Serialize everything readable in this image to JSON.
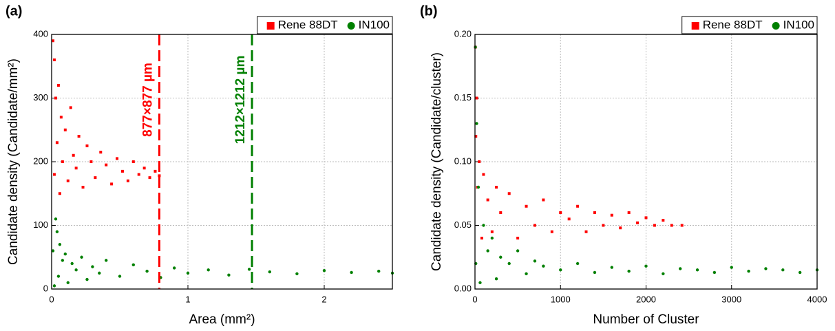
{
  "chart_data": [
    {
      "type": "scatter",
      "panel_label": "(a)",
      "x_label": "Area (mm²)",
      "y_label": "Candidate density (Candidate/mm²)",
      "xlim": [
        0,
        2.5
      ],
      "xticks": [
        0,
        1,
        2
      ],
      "ylim": [
        0,
        400
      ],
      "yticks": [
        0,
        100,
        200,
        300,
        400
      ],
      "grid": true,
      "legend": "upper right",
      "series": [
        {
          "name": "Rene 88DT",
          "color": "#ff0000",
          "marker": "square",
          "x": [
            0.01,
            0.02,
            0.02,
            0.03,
            0.04,
            0.05,
            0.06,
            0.07,
            0.08,
            0.1,
            0.12,
            0.14,
            0.16,
            0.18,
            0.2,
            0.23,
            0.26,
            0.29,
            0.32,
            0.36,
            0.4,
            0.44,
            0.48,
            0.52,
            0.56,
            0.6,
            0.64,
            0.68,
            0.72,
            0.76,
            0.79
          ],
          "values": [
            390,
            360,
            180,
            300,
            230,
            320,
            150,
            270,
            200,
            250,
            170,
            285,
            210,
            190,
            240,
            160,
            225,
            200,
            175,
            215,
            195,
            165,
            205,
            185,
            170,
            200,
            180,
            190,
            175,
            185,
            178
          ]
        },
        {
          "name": "IN100",
          "color": "#008000",
          "marker": "circle",
          "x": [
            0.01,
            0.02,
            0.03,
            0.04,
            0.05,
            0.06,
            0.08,
            0.1,
            0.12,
            0.15,
            0.18,
            0.22,
            0.26,
            0.3,
            0.35,
            0.4,
            0.5,
            0.6,
            0.7,
            0.8,
            0.9,
            1.0,
            1.15,
            1.3,
            1.45,
            1.6,
            1.8,
            2.0,
            2.2,
            2.4,
            2.5
          ],
          "values": [
            60,
            5,
            110,
            90,
            20,
            70,
            45,
            55,
            10,
            40,
            30,
            50,
            15,
            35,
            25,
            45,
            20,
            38,
            28,
            18,
            33,
            25,
            30,
            22,
            31,
            27,
            24,
            29,
            26,
            28,
            25
          ]
        }
      ],
      "annotations": [
        {
          "text": "877×877 µm",
          "x": 0.79,
          "color": "#ff0000"
        },
        {
          "text": "1212×1212 µm",
          "x": 1.47,
          "color": "#008000"
        }
      ]
    },
    {
      "type": "scatter",
      "panel_label": "(b)",
      "x_label": "Number of Cluster",
      "y_label": "Candidate density (Candidate/cluster)",
      "xlim": [
        0,
        4000
      ],
      "xticks": [
        0,
        1000,
        2000,
        3000,
        4000
      ],
      "ylim": [
        0,
        0.2
      ],
      "yticks": [
        {
          "value": 0,
          "label": "0.00"
        },
        0.05,
        {
          "value": 0.1,
          "label": "0.10"
        },
        0.15,
        {
          "value": 0.2,
          "label": "0.20"
        }
      ],
      "grid": true,
      "legend": "upper right",
      "series": [
        {
          "name": "Rene 88DT",
          "color": "#ff0000",
          "marker": "square",
          "x": [
            5,
            10,
            20,
            30,
            50,
            80,
            100,
            150,
            200,
            250,
            300,
            400,
            500,
            600,
            700,
            800,
            900,
            1000,
            1100,
            1200,
            1300,
            1400,
            1500,
            1600,
            1700,
            1800,
            1900,
            2000,
            2100,
            2200,
            2300,
            2420
          ],
          "values": [
            0.19,
            0.12,
            0.15,
            0.08,
            0.1,
            0.04,
            0.09,
            0.07,
            0.045,
            0.08,
            0.06,
            0.075,
            0.04,
            0.065,
            0.05,
            0.07,
            0.045,
            0.06,
            0.055,
            0.065,
            0.045,
            0.06,
            0.05,
            0.058,
            0.048,
            0.06,
            0.052,
            0.056,
            0.05,
            0.054,
            0.05,
            0.05
          ]
        },
        {
          "name": "IN100",
          "color": "#008000",
          "marker": "circle",
          "x": [
            5,
            10,
            20,
            40,
            60,
            100,
            150,
            200,
            250,
            300,
            400,
            500,
            600,
            700,
            800,
            1000,
            1200,
            1400,
            1600,
            1800,
            2000,
            2200,
            2400,
            2600,
            2800,
            3000,
            3200,
            3400,
            3600,
            3800,
            4000
          ],
          "values": [
            0.19,
            0.02,
            0.13,
            0.08,
            0.005,
            0.05,
            0.03,
            0.04,
            0.008,
            0.025,
            0.02,
            0.03,
            0.012,
            0.022,
            0.018,
            0.015,
            0.02,
            0.013,
            0.017,
            0.014,
            0.018,
            0.012,
            0.016,
            0.015,
            0.013,
            0.017,
            0.014,
            0.016,
            0.015,
            0.013,
            0.015
          ]
        }
      ]
    }
  ]
}
